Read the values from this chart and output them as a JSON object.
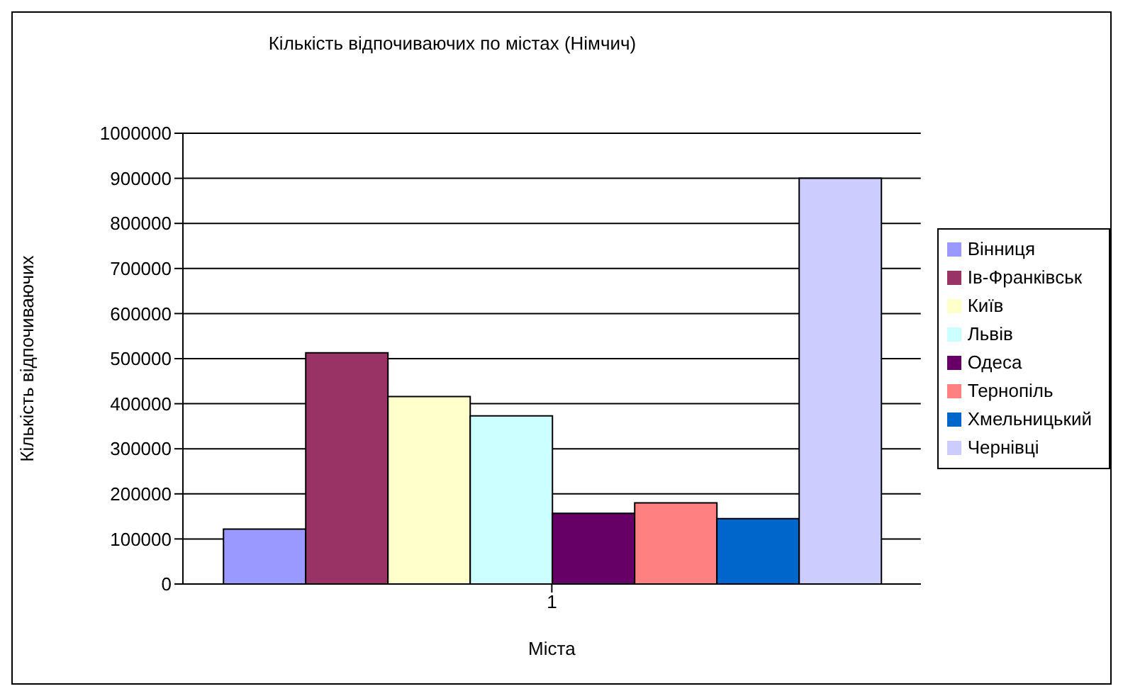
{
  "chart_data": {
    "type": "bar",
    "title": "Кількість відпочиваючих по містах (Німчич)",
    "xlabel": "Міста",
    "ylabel": "Кількість відпочиваючих",
    "categories": [
      "1"
    ],
    "series": [
      {
        "name": "Вінниця",
        "color": "#9999ff",
        "values": [
          122000
        ]
      },
      {
        "name": "Ів-Франківськ",
        "color": "#993366",
        "values": [
          513000
        ]
      },
      {
        "name": "Київ",
        "color": "#ffffcc",
        "values": [
          416000
        ]
      },
      {
        "name": "Львів",
        "color": "#ccffff",
        "values": [
          373000
        ]
      },
      {
        "name": "Одеса",
        "color": "#660066",
        "values": [
          157000
        ]
      },
      {
        "name": "Тернопіль",
        "color": "#ff8080",
        "values": [
          180000
        ]
      },
      {
        "name": "Хмельницький",
        "color": "#0066cc",
        "values": [
          145000
        ]
      },
      {
        "name": "Чернівці",
        "color": "#ccccff",
        "values": [
          900000
        ]
      }
    ],
    "ylim": [
      0,
      1000000
    ],
    "yticks": [
      0,
      100000,
      200000,
      300000,
      400000,
      500000,
      600000,
      700000,
      800000,
      900000,
      1000000
    ],
    "grid": "y",
    "legend": "right"
  }
}
